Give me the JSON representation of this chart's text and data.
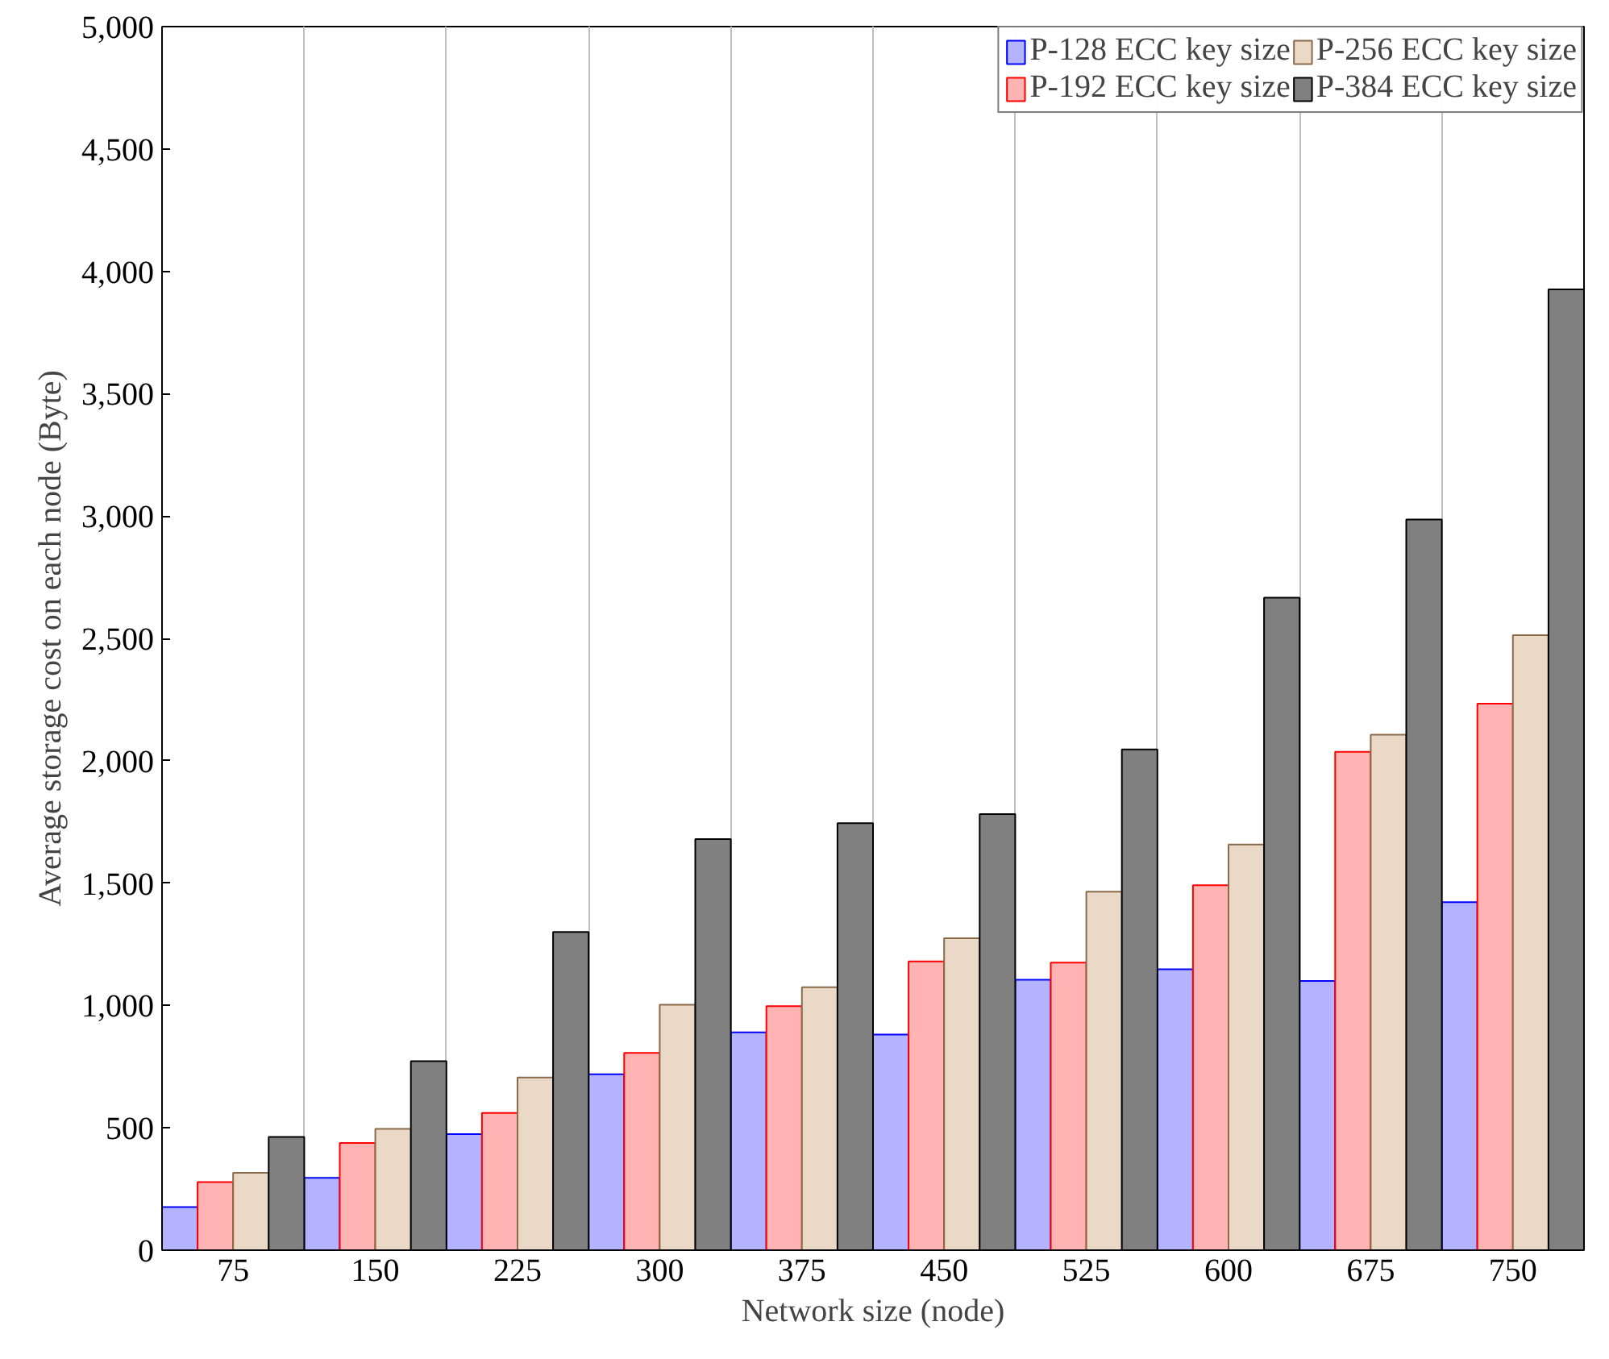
{
  "chart_data": {
    "type": "bar",
    "xlabel": "Network size (node)",
    "ylabel": "Average storage cost on each node (Byte)",
    "categories": [
      "75",
      "150",
      "225",
      "300",
      "375",
      "450",
      "525",
      "600",
      "675",
      "750"
    ],
    "series": [
      {
        "name": "P-128 ECC key size",
        "color": "#b3b3ff",
        "values": [
          176,
          296,
          474,
          719,
          890,
          881,
          1105,
          1148,
          1100,
          1422
        ]
      },
      {
        "name": "P-192 ECC key size",
        "color": "#ffb3b3",
        "values": [
          278,
          438,
          561,
          806,
          997,
          1180,
          1175,
          1491,
          2036,
          2233
        ]
      },
      {
        "name": "P-256 ECC key size",
        "color": "#ead9c6",
        "values": [
          316,
          496,
          706,
          1003,
          1075,
          1275,
          1465,
          1658,
          2106,
          2513
        ]
      },
      {
        "name": "P-384 ECC key size",
        "color": "#808080",
        "values": [
          463,
          772,
          1300,
          1680,
          1745,
          1782,
          2046,
          2666,
          2986,
          3926
        ]
      }
    ],
    "ylim": [
      0,
      5000
    ],
    "yticks": [
      0,
      500,
      {
        "value": 1000,
        "label": "1,000"
      },
      {
        "value": 1500,
        "label": "1,500"
      },
      {
        "value": 2000,
        "label": "2,000"
      },
      {
        "value": 2500,
        "label": "2,500"
      },
      {
        "value": 3000,
        "label": "3,000"
      },
      {
        "value": 3500,
        "label": "3,500"
      },
      {
        "value": 4000,
        "label": "4,000"
      },
      {
        "value": 4500,
        "label": "4,500"
      },
      {
        "value": 5000,
        "label": "5,000"
      }
    ],
    "grid": "x",
    "legend": "top right"
  }
}
